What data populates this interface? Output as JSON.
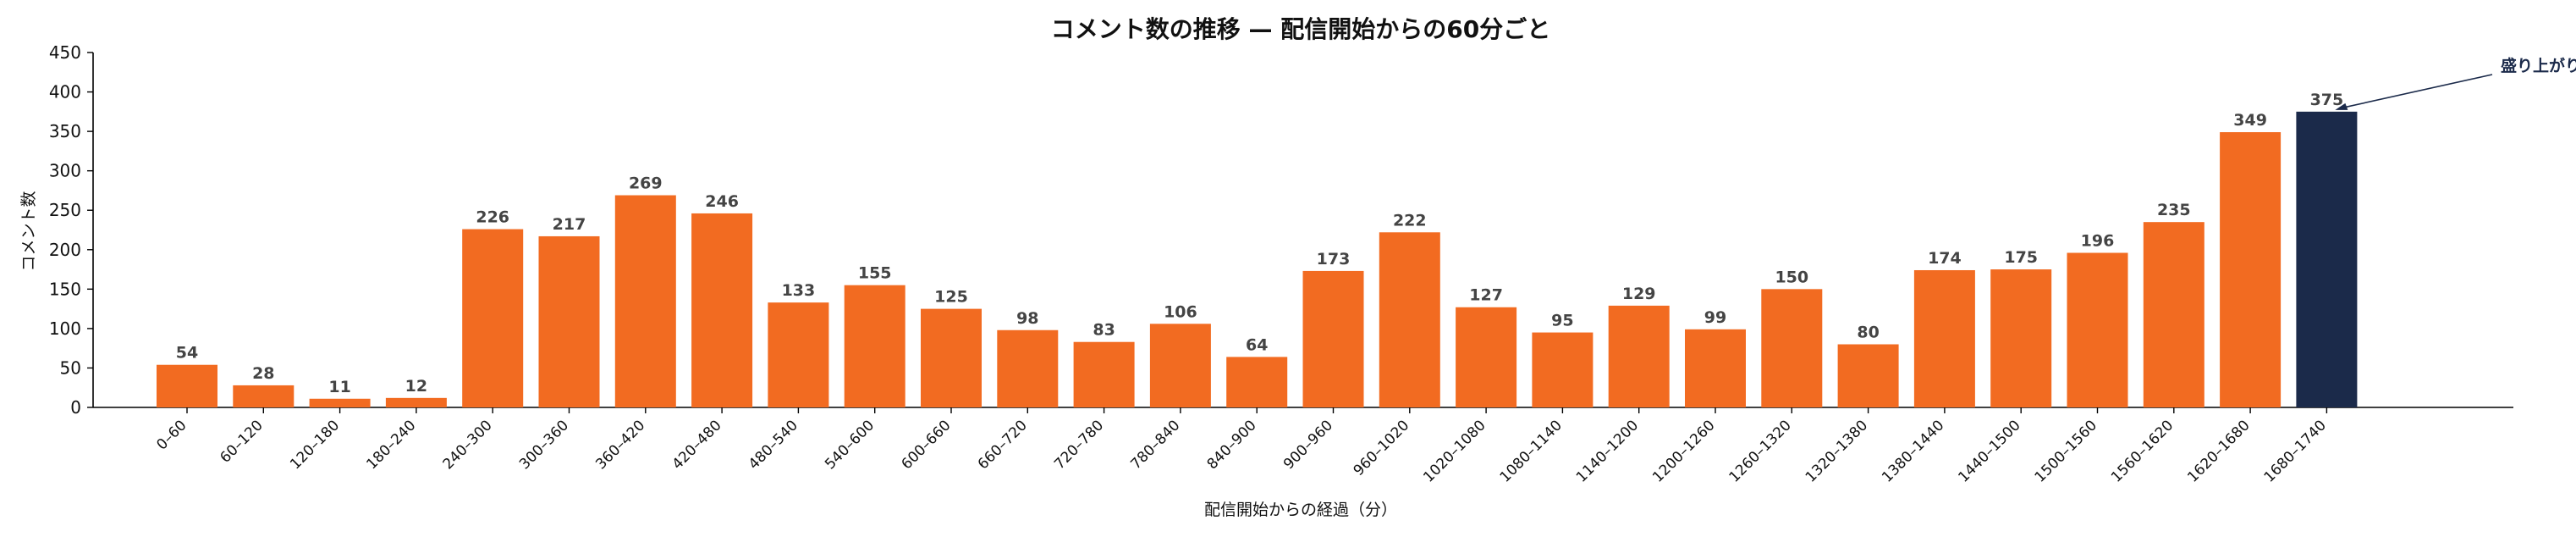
{
  "chart_data": {
    "type": "bar",
    "title": "コメント数の推移 — 配信開始からの60分ごと",
    "xlabel": "配信開始からの経過（分）",
    "ylabel": "コメント数",
    "ylim": [
      0,
      450
    ],
    "yticks": [
      0,
      50,
      100,
      150,
      200,
      250,
      300,
      350,
      400,
      450
    ],
    "grid": false,
    "categories": [
      "0–60",
      "60–120",
      "120–180",
      "180–240",
      "240–300",
      "300–360",
      "360–420",
      "420–480",
      "480–540",
      "540–600",
      "600–660",
      "660–720",
      "720–780",
      "780–840",
      "840–900",
      "900–960",
      "960–1020",
      "1020–1080",
      "1080–1140",
      "1140–1200",
      "1200–1260",
      "1260–1320",
      "1320–1380",
      "1380–1440",
      "1440–1500",
      "1500–1560",
      "1560–1620",
      "1620–1680",
      "1680–1740"
    ],
    "values": [
      54,
      28,
      11,
      12,
      226,
      217,
      269,
      246,
      133,
      155,
      125,
      98,
      83,
      106,
      64,
      173,
      222,
      127,
      95,
      129,
      99,
      150,
      80,
      174,
      175,
      196,
      235,
      349,
      375
    ],
    "bar_color": "#f26b21",
    "highlight_color": "#1b2a4a",
    "highlight_index": 28,
    "annotation": {
      "text": "盛り上がりのピーク"
    }
  }
}
